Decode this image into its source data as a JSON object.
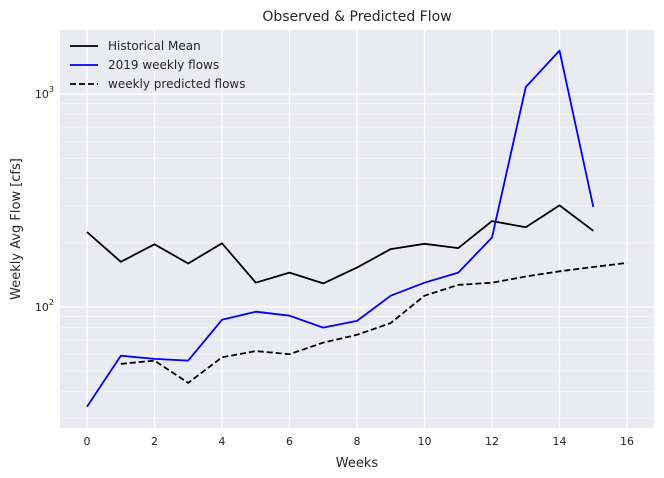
{
  "chart_data": {
    "type": "line",
    "title": "Observed & Predicted Flow",
    "xlabel": "Weeks",
    "ylabel": "Weekly Avg Flow [cfs]",
    "xlim": [
      -0.8,
      16.8
    ],
    "ylim": [
      27,
      2000
    ],
    "yscale": "log",
    "xticks": [
      0,
      2,
      4,
      6,
      8,
      10,
      12,
      14,
      16
    ],
    "yticks": [
      {
        "value": 100,
        "base": "10",
        "exp": "2"
      },
      {
        "value": 1000,
        "base": "10",
        "exp": "3"
      }
    ],
    "grid": true,
    "legend_position": "top-left",
    "colors": {
      "background": "#EAEAF2",
      "grid": "#FFFFFF"
    },
    "series": [
      {
        "name": "Historical Mean",
        "color": "#000000",
        "dash": "solid",
        "x": [
          0,
          1,
          2,
          3,
          4,
          5,
          6,
          7,
          8,
          9,
          10,
          11,
          12,
          13,
          14,
          15
        ],
        "y": [
          225,
          163,
          197,
          160,
          199,
          130,
          145,
          129,
          153,
          187,
          198,
          189,
          253,
          237,
          300,
          228
        ]
      },
      {
        "name": "2019 weekly flows",
        "color": "#0000FF",
        "dash": "solid",
        "x": [
          0,
          1,
          2,
          3,
          4,
          5,
          6,
          7,
          8,
          9,
          10,
          11,
          12,
          13,
          14,
          15
        ],
        "y": [
          34,
          59,
          57,
          56,
          87,
          95,
          91,
          80,
          86,
          113,
          130,
          145,
          212,
          1080,
          1600,
          295
        ]
      },
      {
        "name": "weekly predicted flows",
        "color": "#000000",
        "dash": "dashed",
        "x": [
          1,
          2,
          3,
          4,
          5,
          6,
          7,
          8,
          9,
          10,
          11,
          12,
          13,
          14,
          15,
          16
        ],
        "y": [
          54,
          56,
          44,
          58,
          62,
          60,
          68,
          74,
          84,
          113,
          127,
          130,
          139,
          147,
          154,
          161
        ]
      }
    ]
  }
}
